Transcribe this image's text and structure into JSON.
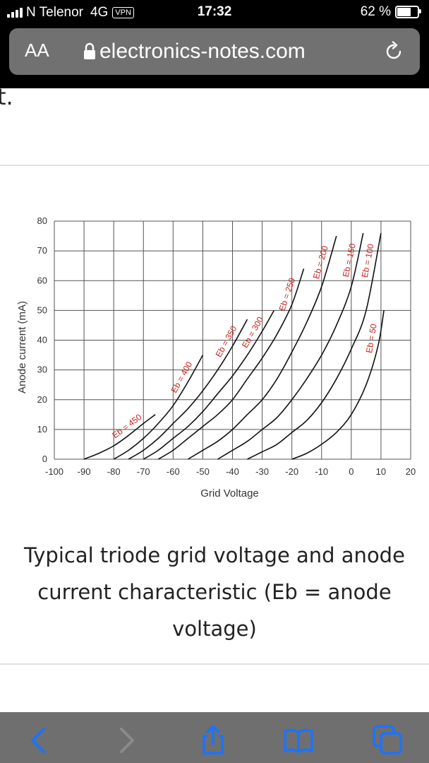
{
  "status_bar": {
    "carrier": "N Telenor",
    "network": "4G",
    "vpn": "VPN",
    "time": "17:32",
    "battery": "62 %"
  },
  "browser": {
    "text_size_button": "AA",
    "url": "electronics-notes.com"
  },
  "page": {
    "fragment_text": "t.",
    "caption": "Typical triode grid voltage and anode current characteristic (Eb = anode voltage)"
  },
  "chart_data": {
    "type": "line",
    "xlabel": "Grid Voltage",
    "ylabel": "Anode current (mA)",
    "xlim": [
      -100,
      20
    ],
    "ylim": [
      0,
      80
    ],
    "x_ticks": [
      -100,
      -90,
      -80,
      -70,
      -60,
      -50,
      -40,
      -30,
      -20,
      -10,
      0,
      10,
      20
    ],
    "y_ticks": [
      0,
      10,
      20,
      30,
      40,
      50,
      60,
      70,
      80
    ],
    "grid": true,
    "label_color": "#c8201c",
    "series": [
      {
        "name": "Eb = 450",
        "x": [
          -90,
          -85,
          -80,
          -75,
          -70,
          -66
        ],
        "y": [
          0,
          2,
          4.5,
          8,
          12,
          15
        ]
      },
      {
        "name": "Eb = 400",
        "x": [
          -80,
          -75,
          -70,
          -65,
          -60,
          -55,
          -50
        ],
        "y": [
          0,
          3,
          7,
          12,
          18,
          26,
          35
        ]
      },
      {
        "name": "Eb = 350",
        "x": [
          -75,
          -70,
          -65,
          -60,
          -55,
          -50,
          -45,
          -40,
          -35
        ],
        "y": [
          0,
          3,
          7,
          12,
          17,
          23,
          30,
          38,
          47
        ]
      },
      {
        "name": "Eb = 300",
        "x": [
          -70,
          -65,
          -60,
          -55,
          -50,
          -45,
          -40,
          -35,
          -30,
          -26
        ],
        "y": [
          0,
          3,
          7,
          11,
          16,
          22,
          28,
          35,
          43,
          50
        ]
      },
      {
        "name": "Eb = 250",
        "x": [
          -65,
          -60,
          -55,
          -50,
          -45,
          -40,
          -35,
          -30,
          -25,
          -20,
          -16
        ],
        "y": [
          0,
          3,
          7,
          11,
          15,
          20,
          27,
          34,
          42,
          52,
          64
        ]
      },
      {
        "name": "Eb = 200",
        "x": [
          -55,
          -50,
          -45,
          -40,
          -35,
          -30,
          -25,
          -20,
          -15,
          -10,
          -5
        ],
        "y": [
          0,
          3,
          6,
          10,
          15,
          20,
          27,
          36,
          46,
          58,
          75
        ]
      },
      {
        "name": "Eb = 150",
        "x": [
          -45,
          -40,
          -35,
          -30,
          -25,
          -20,
          -15,
          -10,
          -5,
          0,
          4
        ],
        "y": [
          0,
          3,
          6,
          10,
          14,
          20,
          27,
          35,
          45,
          58,
          76
        ]
      },
      {
        "name": "Eb = 100",
        "x": [
          -35,
          -30,
          -25,
          -20,
          -15,
          -10,
          -5,
          0,
          5,
          10
        ],
        "y": [
          0,
          2.5,
          5,
          9,
          13,
          19,
          27,
          37,
          50,
          76
        ]
      },
      {
        "name": "Eb = 50",
        "x": [
          -20,
          -15,
          -10,
          -5,
          0,
          5,
          9,
          11
        ],
        "y": [
          0,
          2,
          5,
          9,
          15,
          25,
          38,
          50
        ]
      }
    ]
  }
}
